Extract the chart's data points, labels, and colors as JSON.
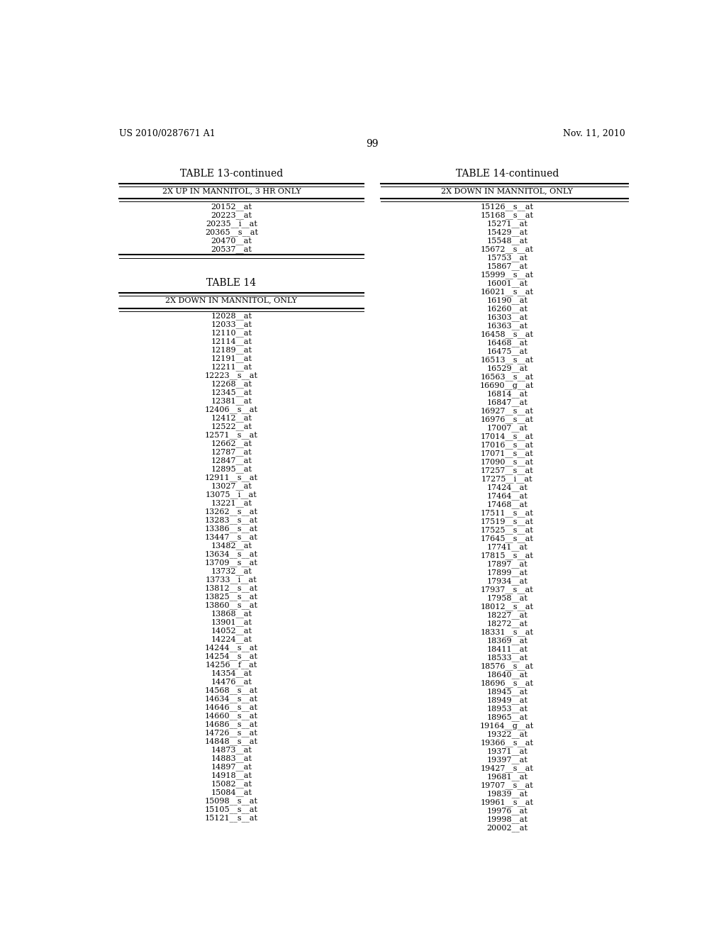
{
  "header_left": "US 2010/0287671 A1",
  "header_right": "Nov. 11, 2010",
  "page_number": "99",
  "bg_color": "#ffffff",
  "table13_title": "TABLE 13-continued",
  "table13_header": "2X UP IN MANNITOL, 3 HR ONLY",
  "table13_data": [
    "20152__at",
    "20223__at",
    "20235__i__at",
    "20365__s__at",
    "20470__at",
    "20537__at"
  ],
  "table14_title": "TABLE 14",
  "table14_header": "2X DOWN IN MANNITOL, ONLY",
  "table14_data": [
    "12028__at",
    "12033__at",
    "12110__at",
    "12114__at",
    "12189__at",
    "12191__at",
    "12211__at",
    "12223__s__at",
    "12268__at",
    "12345__at",
    "12381__at",
    "12406__s__at",
    "12412__at",
    "12522__at",
    "12571__s__at",
    "12662__at",
    "12787__at",
    "12847__at",
    "12895__at",
    "12911__s__at",
    "13027__at",
    "13075__i__at",
    "13221__at",
    "13262__s__at",
    "13283__s__at",
    "13386__s__at",
    "13447__s__at",
    "13482__at",
    "13634__s__at",
    "13709__s__at",
    "13732__at",
    "13733__i__at",
    "13812__s__at",
    "13825__s__at",
    "13860__s__at",
    "13868__at",
    "13901__at",
    "14052__at",
    "14224__at",
    "14244__s__at",
    "14254__s__at",
    "14256__f__at",
    "14354__at",
    "14476__at",
    "14568__s__at",
    "14634__s__at",
    "14646__s__at",
    "14660__s__at",
    "14686__s__at",
    "14726__s__at",
    "14848__s__at",
    "14873__at",
    "14883__at",
    "14897__at",
    "14918__at",
    "15082__at",
    "15084__at",
    "15098__s__at",
    "15105__s__at",
    "15121__s__at"
  ],
  "table14_continued_data": [
    "15126__s__at",
    "15168__s__at",
    "15271__at",
    "15429__at",
    "15548__at",
    "15672__s__at",
    "15753__at",
    "15867__at",
    "15999__s__at",
    "16001__at",
    "16021__s__at",
    "16190__at",
    "16260__at",
    "16303__at",
    "16363__at",
    "16458__s__at",
    "16468__at",
    "16475__at",
    "16513__s__at",
    "16529__at",
    "16563__s__at",
    "16690__g__at",
    "16814__at",
    "16847__at",
    "16927__s__at",
    "16976__s__at",
    "17007__at",
    "17014__s__at",
    "17016__s__at",
    "17071__s__at",
    "17090__s__at",
    "17257__s__at",
    "17275__i__at",
    "17424__at",
    "17464__at",
    "17468__at",
    "17511__s__at",
    "17519__s__at",
    "17525__s__at",
    "17645__s__at",
    "17741__at",
    "17815__s__at",
    "17897__at",
    "17899__at",
    "17934__at",
    "17937__s__at",
    "17958__at",
    "18012__s__at",
    "18227__at",
    "18272__at",
    "18331__s__at",
    "18369__at",
    "18411__at",
    "18533__at",
    "18576__s__at",
    "18640__at",
    "18696__s__at",
    "18945__at",
    "18949__at",
    "18953__at",
    "18965__at",
    "19164__g__at",
    "19322__at",
    "19366__s__at",
    "19371__at",
    "19397__at",
    "19427__s__at",
    "19681__at",
    "19707__s__at",
    "19839__at",
    "19961__s__at",
    "19976__at",
    "19998__at",
    "20002__at"
  ]
}
